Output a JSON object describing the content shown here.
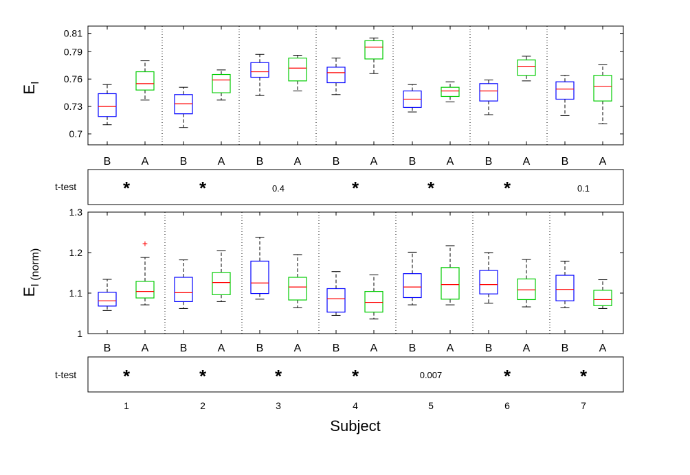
{
  "colors": {
    "before": "#0000ff",
    "after": "#00cc00",
    "median": "#ff0000",
    "whisker": "#000000",
    "outlier": "#ff0000"
  },
  "xlabel": "Subject",
  "subjects": [
    "1",
    "2",
    "3",
    "4",
    "5",
    "6",
    "7"
  ],
  "group_labels": [
    "B",
    "A"
  ],
  "ttest_label": "t-test",
  "chart_data": [
    {
      "type": "box",
      "ylabel_main": "E",
      "ylabel_sub": "I",
      "ylim": [
        0.688,
        0.818
      ],
      "yticks": [
        "0.7",
        "0.73",
        "0.76",
        "0.79",
        "0.81"
      ],
      "boxes": [
        {
          "subject": "1",
          "group": "B",
          "whisker_low": 0.71,
          "q1": 0.719,
          "median": 0.73,
          "q3": 0.744,
          "whisker_high": 0.754
        },
        {
          "subject": "1",
          "group": "A",
          "whisker_low": 0.737,
          "q1": 0.748,
          "median": 0.755,
          "q3": 0.768,
          "whisker_high": 0.78
        },
        {
          "subject": "2",
          "group": "B",
          "whisker_low": 0.707,
          "q1": 0.722,
          "median": 0.733,
          "q3": 0.743,
          "whisker_high": 0.751
        },
        {
          "subject": "2",
          "group": "A",
          "whisker_low": 0.737,
          "q1": 0.745,
          "median": 0.759,
          "q3": 0.765,
          "whisker_high": 0.77
        },
        {
          "subject": "3",
          "group": "B",
          "whisker_low": 0.742,
          "q1": 0.762,
          "median": 0.768,
          "q3": 0.778,
          "whisker_high": 0.787
        },
        {
          "subject": "3",
          "group": "A",
          "whisker_low": 0.747,
          "q1": 0.758,
          "median": 0.772,
          "q3": 0.783,
          "whisker_high": 0.786
        },
        {
          "subject": "4",
          "group": "B",
          "whisker_low": 0.743,
          "q1": 0.756,
          "median": 0.767,
          "q3": 0.773,
          "whisker_high": 0.783
        },
        {
          "subject": "4",
          "group": "A",
          "whisker_low": 0.766,
          "q1": 0.782,
          "median": 0.795,
          "q3": 0.802,
          "whisker_high": 0.805
        },
        {
          "subject": "5",
          "group": "B",
          "whisker_low": 0.724,
          "q1": 0.729,
          "median": 0.738,
          "q3": 0.747,
          "whisker_high": 0.754
        },
        {
          "subject": "5",
          "group": "A",
          "whisker_low": 0.735,
          "q1": 0.741,
          "median": 0.747,
          "q3": 0.751,
          "whisker_high": 0.757
        },
        {
          "subject": "6",
          "group": "B",
          "whisker_low": 0.721,
          "q1": 0.736,
          "median": 0.747,
          "q3": 0.755,
          "whisker_high": 0.759
        },
        {
          "subject": "6",
          "group": "A",
          "whisker_low": 0.758,
          "q1": 0.764,
          "median": 0.774,
          "q3": 0.781,
          "whisker_high": 0.785
        },
        {
          "subject": "7",
          "group": "B",
          "whisker_low": 0.72,
          "q1": 0.738,
          "median": 0.749,
          "q3": 0.757,
          "whisker_high": 0.764
        },
        {
          "subject": "7",
          "group": "A",
          "whisker_low": 0.711,
          "q1": 0.736,
          "median": 0.752,
          "q3": 0.764,
          "whisker_high": 0.776
        }
      ]
    },
    {
      "type": "box",
      "ylabel_main": "E",
      "ylabel_sub": "I (norm)",
      "ylim": [
        1.0,
        1.3
      ],
      "yticks": [
        "1",
        "1.1",
        "1.2",
        "1.3"
      ],
      "boxes": [
        {
          "subject": "1",
          "group": "B",
          "whisker_low": 1.057,
          "q1": 1.068,
          "median": 1.081,
          "q3": 1.102,
          "whisker_high": 1.134
        },
        {
          "subject": "1",
          "group": "A",
          "whisker_low": 1.071,
          "q1": 1.088,
          "median": 1.104,
          "q3": 1.129,
          "whisker_high": 1.188,
          "outliers": [
            1.223
          ]
        },
        {
          "subject": "2",
          "group": "B",
          "whisker_low": 1.062,
          "q1": 1.079,
          "median": 1.101,
          "q3": 1.139,
          "whisker_high": 1.182
        },
        {
          "subject": "2",
          "group": "A",
          "whisker_low": 1.079,
          "q1": 1.096,
          "median": 1.126,
          "q3": 1.151,
          "whisker_high": 1.205
        },
        {
          "subject": "3",
          "group": "B",
          "whisker_low": 1.085,
          "q1": 1.099,
          "median": 1.125,
          "q3": 1.179,
          "whisker_high": 1.238
        },
        {
          "subject": "3",
          "group": "A",
          "whisker_low": 1.064,
          "q1": 1.083,
          "median": 1.115,
          "q3": 1.139,
          "whisker_high": 1.195
        },
        {
          "subject": "4",
          "group": "B",
          "whisker_low": 1.045,
          "q1": 1.053,
          "median": 1.086,
          "q3": 1.111,
          "whisker_high": 1.153
        },
        {
          "subject": "4",
          "group": "A",
          "whisker_low": 1.036,
          "q1": 1.053,
          "median": 1.077,
          "q3": 1.104,
          "whisker_high": 1.145
        },
        {
          "subject": "5",
          "group": "B",
          "whisker_low": 1.071,
          "q1": 1.089,
          "median": 1.115,
          "q3": 1.148,
          "whisker_high": 1.201
        },
        {
          "subject": "5",
          "group": "A",
          "whisker_low": 1.071,
          "q1": 1.085,
          "median": 1.121,
          "q3": 1.163,
          "whisker_high": 1.217
        },
        {
          "subject": "6",
          "group": "B",
          "whisker_low": 1.075,
          "q1": 1.098,
          "median": 1.121,
          "q3": 1.156,
          "whisker_high": 1.2
        },
        {
          "subject": "6",
          "group": "A",
          "whisker_low": 1.066,
          "q1": 1.084,
          "median": 1.108,
          "q3": 1.135,
          "whisker_high": 1.183
        },
        {
          "subject": "7",
          "group": "B",
          "whisker_low": 1.064,
          "q1": 1.081,
          "median": 1.109,
          "q3": 1.144,
          "whisker_high": 1.179
        },
        {
          "subject": "7",
          "group": "A",
          "whisker_low": 1.062,
          "q1": 1.069,
          "median": 1.084,
          "q3": 1.107,
          "whisker_high": 1.133
        }
      ]
    }
  ],
  "ttests": [
    [
      "*",
      "*",
      "0.4",
      "*",
      "*",
      "*",
      "0.1"
    ],
    [
      "*",
      "*",
      "*",
      "*",
      "0.007",
      "*",
      "*"
    ]
  ]
}
